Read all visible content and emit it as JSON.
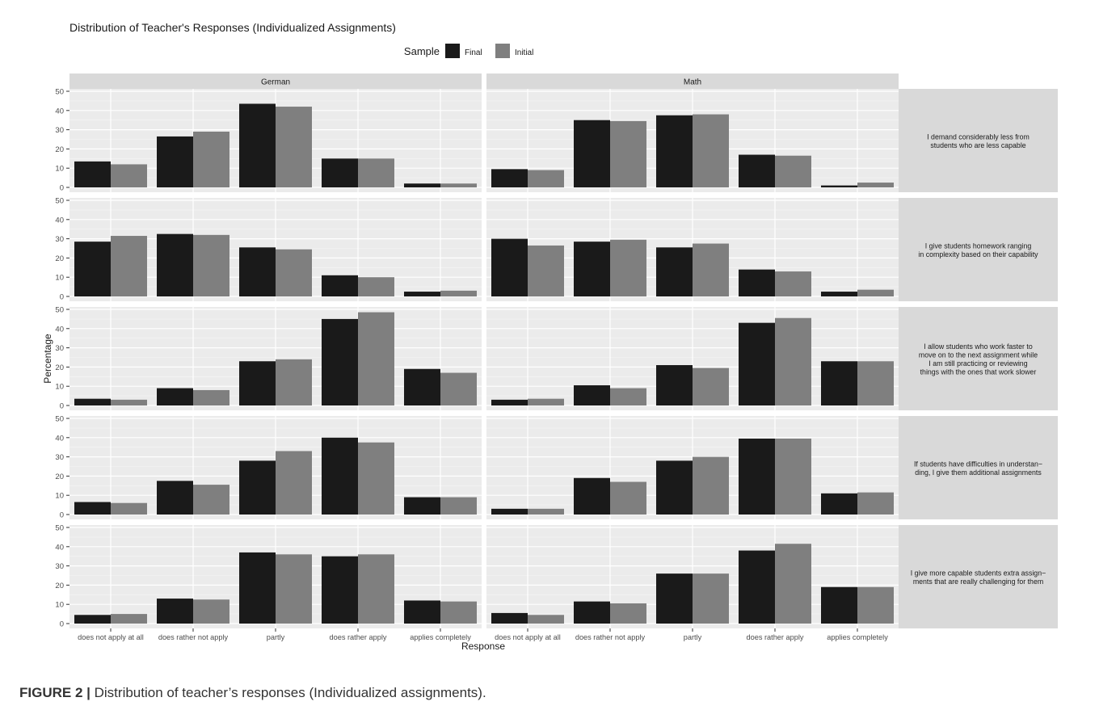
{
  "chart_data": {
    "type": "bar",
    "title": "Distribution of Teacher's Responses (Individualized Assignments)",
    "xlabel": "Response",
    "ylabel": "Percentage",
    "ylim": [
      0,
      50
    ],
    "yticks": [
      0,
      10,
      20,
      30,
      40,
      50
    ],
    "grid": true,
    "legend": {
      "title": "Sample",
      "position": "top",
      "entries": [
        {
          "name": "Final",
          "color": "#1a1a1a"
        },
        {
          "name": "Initial",
          "color": "#7f7f7f"
        }
      ]
    },
    "categories": [
      "does not apply at all",
      "does rather not apply",
      "partly",
      "does rather apply",
      "applies completely"
    ],
    "columns": [
      "German",
      "Math"
    ],
    "rows": [
      "I demand considerably less from\nstudents who are less capable",
      "I give students homework ranging\nin complexity based on their capability",
      "I allow students who work faster to\nmove on to the next assignment while\nI am still practicing or reviewing\nthings with the ones that work slower",
      "If students have difficulties in understan−\nding, I give them additional assignments",
      "I give more capable students extra assign−\nments that are really challenging for them"
    ],
    "series": [
      {
        "name": "Final",
        "color": "#1a1a1a"
      },
      {
        "name": "Initial",
        "color": "#7f7f7f"
      }
    ],
    "panels": [
      {
        "row": 0,
        "column": "German",
        "Final": [
          13.5,
          26.5,
          43.5,
          15,
          2
        ],
        "Initial": [
          12,
          29,
          42,
          15,
          2
        ]
      },
      {
        "row": 0,
        "column": "Math",
        "Final": [
          9.5,
          35,
          37.5,
          17,
          1
        ],
        "Initial": [
          9,
          34.5,
          38,
          16.5,
          2.5
        ]
      },
      {
        "row": 1,
        "column": "German",
        "Final": [
          28.5,
          32.5,
          25.5,
          11,
          2.5
        ],
        "Initial": [
          31.5,
          32,
          24.5,
          10,
          3
        ]
      },
      {
        "row": 1,
        "column": "Math",
        "Final": [
          30,
          28.5,
          25.5,
          14,
          2.5
        ],
        "Initial": [
          26.5,
          29.5,
          27.5,
          13,
          3.5
        ]
      },
      {
        "row": 2,
        "column": "German",
        "Final": [
          3.5,
          9,
          23,
          45,
          19
        ],
        "Initial": [
          3,
          8,
          24,
          48.5,
          17
        ]
      },
      {
        "row": 2,
        "column": "Math",
        "Final": [
          3,
          10.5,
          21,
          43,
          23
        ],
        "Initial": [
          3.5,
          9,
          19.5,
          45.5,
          23
        ]
      },
      {
        "row": 3,
        "column": "German",
        "Final": [
          6.5,
          17.5,
          28,
          40,
          9
        ],
        "Initial": [
          6,
          15.5,
          33,
          37.5,
          9
        ]
      },
      {
        "row": 3,
        "column": "Math",
        "Final": [
          3,
          19,
          28,
          39.5,
          11
        ],
        "Initial": [
          3,
          17,
          30,
          39.5,
          11.5
        ]
      },
      {
        "row": 4,
        "column": "German",
        "Final": [
          4.5,
          13,
          37,
          35,
          12
        ],
        "Initial": [
          5,
          12.5,
          36,
          36,
          11.5
        ]
      },
      {
        "row": 4,
        "column": "Math",
        "Final": [
          5.5,
          11.5,
          26,
          38,
          19
        ],
        "Initial": [
          4.5,
          10.5,
          26,
          41.5,
          19
        ]
      }
    ]
  },
  "caption": {
    "label": "FIGURE 2 |",
    "text": "Distribution of teacher’s responses (Individualized assignments)."
  }
}
